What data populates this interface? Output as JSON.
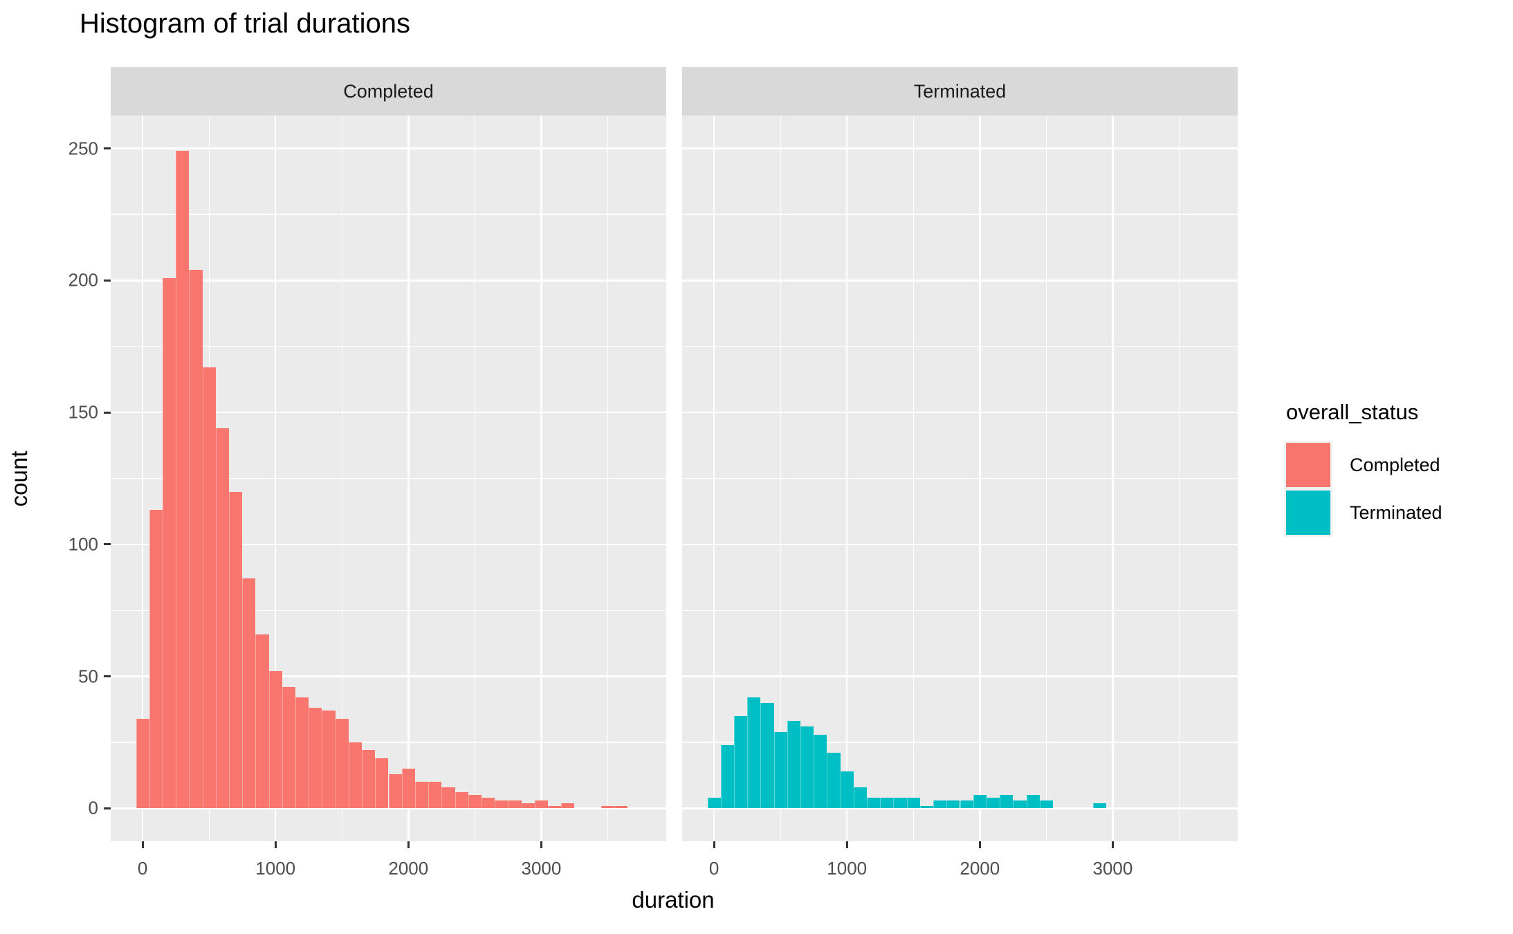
{
  "title": "Histogram of trial durations",
  "axes": {
    "x": {
      "label": "duration",
      "major_ticks": [
        0,
        1000,
        2000,
        3000
      ],
      "minor_ticks": [
        500,
        1500,
        2500,
        3500
      ],
      "domain": [
        -240,
        3940
      ]
    },
    "y": {
      "label": "count",
      "major_ticks": [
        0,
        50,
        100,
        150,
        200,
        250
      ],
      "minor_ticks": [
        25,
        75,
        125,
        175,
        225
      ],
      "domain": [
        -12.5,
        262.5
      ]
    }
  },
  "facets": [
    {
      "label": "Completed"
    },
    {
      "label": "Terminated"
    }
  ],
  "legend": {
    "title": "overall_status",
    "entries": [
      {
        "label": "Completed",
        "color": "#F8766D"
      },
      {
        "label": "Terminated",
        "color": "#00BFC4"
      }
    ]
  },
  "colors": {
    "panel_background": "#EBEBEB",
    "strip_background": "#D9D9D9",
    "gridline": "#FFFFFF",
    "tick_text": "#4D4D4D",
    "strip_text": "#1A1A1A",
    "completed_fill": "#F8766D",
    "terminated_fill": "#00BFC4"
  },
  "chart_data": {
    "type": "bar",
    "subtype": "faceted-histogram",
    "title": "Histogram of trial durations",
    "xlabel": "duration",
    "ylabel": "count",
    "bin_width": 100,
    "xlim": [
      -240,
      3940
    ],
    "ylim": [
      0,
      262
    ],
    "grid": "on",
    "legend_position": "right",
    "bin_centers": [
      0,
      100,
      200,
      300,
      400,
      500,
      600,
      700,
      800,
      900,
      1000,
      1100,
      1200,
      1300,
      1400,
      1500,
      1600,
      1700,
      1800,
      1900,
      2000,
      2100,
      2200,
      2300,
      2400,
      2500,
      2600,
      2700,
      2800,
      2900,
      3000,
      3100,
      3200,
      3300,
      3400,
      3500,
      3600,
      3700
    ],
    "series": [
      {
        "name": "Completed",
        "facet": "Completed",
        "color": "#F8766D",
        "values": [
          34,
          113,
          201,
          249,
          204,
          167,
          144,
          120,
          87,
          66,
          52,
          46,
          42,
          38,
          37,
          34,
          25,
          22,
          19,
          13,
          15,
          10,
          10,
          8,
          6,
          5,
          4,
          3,
          3,
          2,
          3,
          1,
          2,
          0,
          0,
          1,
          1,
          0
        ]
      },
      {
        "name": "Terminated",
        "facet": "Terminated",
        "color": "#00BFC4",
        "values": [
          4,
          24,
          35,
          42,
          40,
          29,
          33,
          31,
          28,
          21,
          14,
          8,
          4,
          4,
          4,
          4,
          1,
          3,
          3,
          3,
          5,
          4,
          5,
          3,
          5,
          3,
          0,
          0,
          0,
          2,
          0,
          0,
          0,
          0,
          0,
          0,
          0,
          0
        ]
      }
    ]
  }
}
